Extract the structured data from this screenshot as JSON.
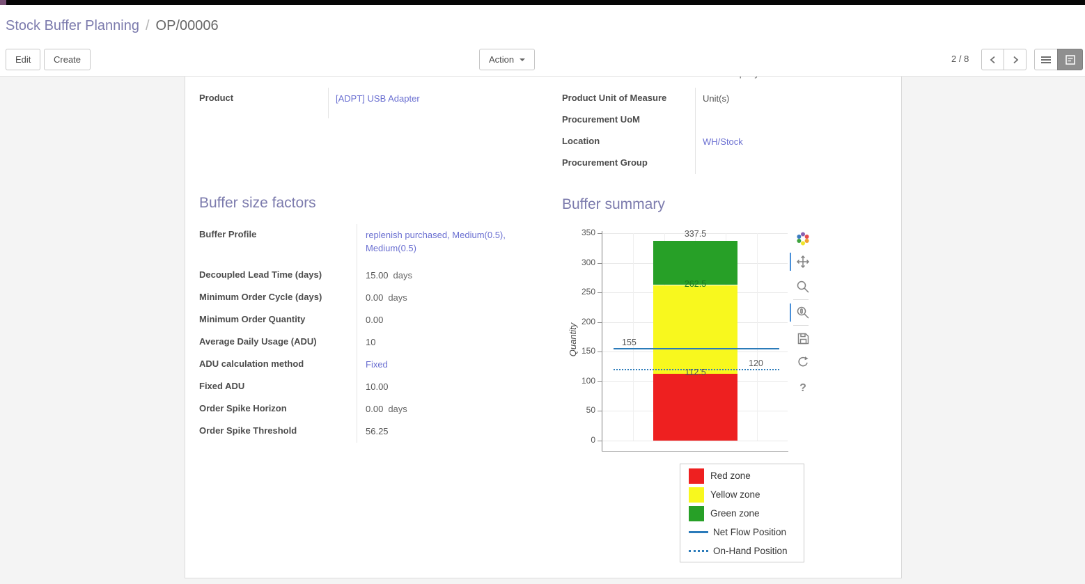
{
  "breadcrumb": {
    "parent": "Stock Buffer Planning",
    "separator": "/",
    "current": "OP/00006"
  },
  "toolbar": {
    "edit_label": "Edit",
    "create_label": "Create",
    "action_label": "Action",
    "pager": "2 / 8"
  },
  "icons": {
    "nav": [
      "chevron-left-icon",
      "chevron-right-icon"
    ],
    "view_switcher": [
      "list-view-icon",
      "form-view-icon"
    ],
    "action_caret": "caret-down-icon",
    "chart_toolbar": [
      "bokeh-logo-icon",
      "pan-tool-icon",
      "box-zoom-tool-icon",
      "wheel-zoom-tool-icon",
      "save-tool-icon",
      "reset-tool-icon",
      "help-tool-icon"
    ]
  },
  "sheet": {
    "company_partial": "YourCompany",
    "left_fields": [
      {
        "label": "Product",
        "value": "[ADPT] USB Adapter"
      }
    ],
    "right_fields": [
      {
        "label": "Product Unit of Measure",
        "value": "Unit(s)"
      },
      {
        "label": "Procurement UoM",
        "value": ""
      },
      {
        "label": "Location",
        "value": "WH/Stock"
      },
      {
        "label": "Procurement Group",
        "value": ""
      }
    ],
    "factors": {
      "title": "Buffer size factors",
      "fields": [
        {
          "label": "Buffer Profile",
          "value": "replenish purchased, Medium(0.5), Medium(0.5)"
        },
        {
          "label": "Decoupled Lead Time (days)",
          "value": "15.00",
          "suffix": "days"
        },
        {
          "label": "Minimum Order Cycle (days)",
          "value": "0.00",
          "suffix": "days"
        },
        {
          "label": "Minimum Order Quantity",
          "value": "0.00"
        },
        {
          "label": "Average Daily Usage (ADU)",
          "value": "10"
        },
        {
          "label": "ADU calculation method",
          "value": "Fixed"
        },
        {
          "label": "Fixed ADU",
          "value": "10.00"
        },
        {
          "label": "Order Spike Horizon",
          "value": "0.00",
          "suffix": "days"
        },
        {
          "label": "Order Spike Threshold",
          "value": "56.25"
        }
      ]
    },
    "summary_title": "Buffer summary"
  },
  "chart_data": {
    "type": "bar",
    "title": "",
    "xlabel": "",
    "ylabel": "Quantity",
    "ylim": [
      0,
      350
    ],
    "yticks": [
      0,
      50,
      100,
      150,
      200,
      250,
      300,
      350
    ],
    "grid": true,
    "legend_position": "below-right",
    "zones": [
      {
        "name": "Red zone",
        "from": 0,
        "to": 112.5,
        "color": "#ee2020"
      },
      {
        "name": "Yellow zone",
        "from": 112.5,
        "to": 262.5,
        "color": "#f8f81e"
      },
      {
        "name": "Green zone",
        "from": 262.5,
        "to": 337.5,
        "color": "#27a027"
      }
    ],
    "lines": [
      {
        "name": "Net Flow Position",
        "value": 155,
        "style": "solid",
        "color": "#2b7bba",
        "label": "155",
        "label_side": "left"
      },
      {
        "name": "On-Hand Position",
        "value": 120,
        "style": "dotted",
        "color": "#2b7bba",
        "label": "120",
        "label_side": "right"
      }
    ],
    "boundary_labels": [
      {
        "text": "337.5",
        "value": 337.5,
        "placement": "above",
        "color": "#555555"
      },
      {
        "text": "262.5",
        "value": 262.5,
        "placement": "on",
        "color": "#1d7a1d"
      },
      {
        "text": "112.5",
        "value": 112.5,
        "placement": "on",
        "color": "#555555"
      }
    ],
    "legend": [
      "Red zone",
      "Yellow zone",
      "Green zone",
      "Net Flow Position",
      "On-Hand Position"
    ]
  }
}
